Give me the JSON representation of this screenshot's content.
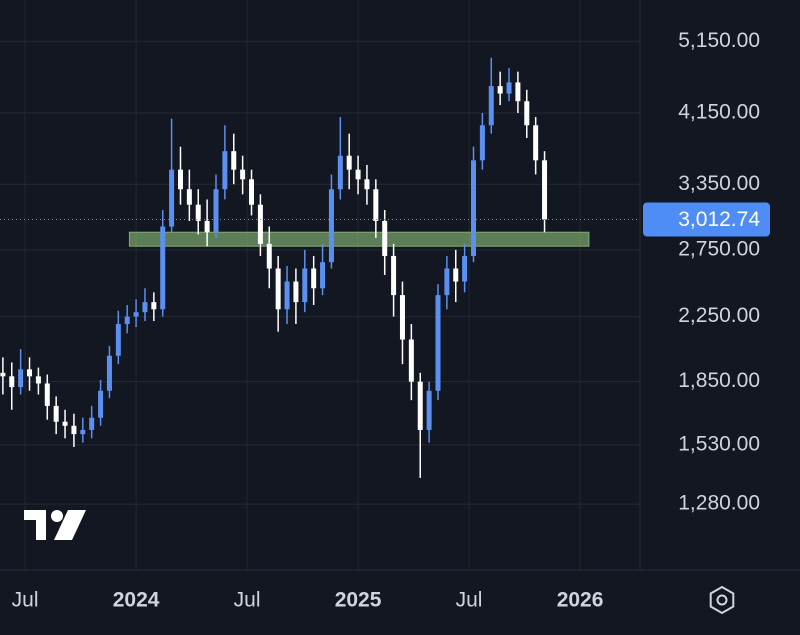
{
  "chart_data": {
    "type": "candlestick",
    "x": [
      2023.4,
      2023.44,
      2023.48,
      2023.52,
      2023.56,
      2023.6,
      2023.64,
      2023.68,
      2023.72,
      2023.76,
      2023.8,
      2023.84,
      2023.88,
      2023.92,
      2023.96,
      2024.0,
      2024.04,
      2024.08,
      2024.12,
      2024.16,
      2024.2,
      2024.24,
      2024.28,
      2024.32,
      2024.36,
      2024.4,
      2024.44,
      2024.48,
      2024.52,
      2024.56,
      2024.6,
      2024.64,
      2024.68,
      2024.72,
      2024.76,
      2024.8,
      2024.84,
      2024.88,
      2024.92,
      2024.96,
      2025.0,
      2025.04,
      2025.08,
      2025.12,
      2025.16,
      2025.2,
      2025.24,
      2025.28,
      2025.32,
      2025.36,
      2025.4,
      2025.44,
      2025.48,
      2025.52,
      2025.56,
      2025.6,
      2025.64,
      2025.68,
      2025.72,
      2025.76,
      2025.8,
      2025.84
    ],
    "open": [
      1900,
      1880,
      1820,
      1920,
      1880,
      1840,
      1720,
      1640,
      1620,
      1580,
      1600,
      1660,
      1800,
      2000,
      2200,
      2250,
      2280,
      2350,
      2300,
      2950,
      3500,
      3300,
      3150,
      3000,
      2900,
      3300,
      3700,
      3500,
      3400,
      3150,
      2800,
      2600,
      2300,
      2500,
      2350,
      2600,
      2450,
      2650,
      3300,
      3650,
      3500,
      3400,
      3300,
      3000,
      2700,
      2400,
      2100,
      1850,
      1600,
      1800,
      2400,
      2600,
      2500,
      2700,
      3600,
      4000,
      4500,
      4400,
      4550,
      4300,
      4000,
      3600
    ],
    "high": [
      1990,
      1960,
      2040,
      1990,
      1930,
      1890,
      1770,
      1700,
      1680,
      1660,
      1720,
      1860,
      2060,
      2290,
      2330,
      2370,
      2450,
      2420,
      3100,
      4080,
      3750,
      3500,
      3300,
      3200,
      3450,
      4000,
      3900,
      3650,
      3500,
      3250,
      2950,
      2700,
      2620,
      2600,
      2750,
      2700,
      2800,
      3450,
      4100,
      3900,
      3650,
      3550,
      3400,
      3100,
      2800,
      2500,
      2200,
      1900,
      1850,
      2480,
      2700,
      2750,
      2800,
      3750,
      4150,
      4900,
      4700,
      4750,
      4700,
      4450,
      4100,
      3700
    ],
    "low": [
      1780,
      1700,
      1780,
      1800,
      1780,
      1650,
      1580,
      1560,
      1520,
      1540,
      1560,
      1620,
      1760,
      1950,
      2140,
      2180,
      2220,
      2220,
      2250,
      2900,
      3150,
      3000,
      2880,
      2780,
      2850,
      3200,
      3350,
      3250,
      3050,
      2700,
      2450,
      2150,
      2200,
      2200,
      2280,
      2330,
      2400,
      2600,
      3200,
      3300,
      3250,
      3150,
      2850,
      2550,
      2250,
      1950,
      1750,
      1385,
      1540,
      1750,
      2300,
      2350,
      2420,
      2650,
      3500,
      3900,
      4250,
      4300,
      4150,
      3850,
      3450,
      2900
    ],
    "close": [
      1880,
      1820,
      1920,
      1880,
      1840,
      1720,
      1640,
      1620,
      1580,
      1600,
      1660,
      1800,
      2000,
      2200,
      2250,
      2280,
      2350,
      2300,
      2950,
      3500,
      3300,
      3150,
      3000,
      2900,
      3300,
      3700,
      3500,
      3400,
      3150,
      2800,
      2600,
      2300,
      2500,
      2350,
      2600,
      2450,
      2650,
      3300,
      3650,
      3500,
      3400,
      3300,
      3000,
      2700,
      2400,
      2100,
      1850,
      1600,
      1800,
      2400,
      2600,
      2500,
      2700,
      3600,
      4000,
      4500,
      4400,
      4550,
      4300,
      4000,
      3600,
      3012.74
    ],
    "up_color": "#5b8ff0",
    "down_color": "#ffffff",
    "xlim": [
      2023.387,
      2026.27
    ],
    "xticks": [
      {
        "value": 2023.5,
        "label": "Jul"
      },
      2024,
      {
        "value": 2024.5,
        "label": "Jul"
      },
      2025,
      {
        "value": 2025.5,
        "label": "Jul"
      },
      2026
    ],
    "ylim": [
      1050,
      5830
    ],
    "log_scale": true,
    "grid": true,
    "yticks": [
      {
        "value": 5150,
        "label": "5,150.00"
      },
      {
        "value": 4150,
        "label": "4,150.00"
      },
      {
        "value": 3350,
        "label": "3,350.00"
      },
      {
        "value": 2750,
        "label": "2,750.00"
      },
      {
        "value": 2250,
        "label": "2,250.00"
      },
      {
        "value": 1850,
        "label": "1,850.00"
      },
      {
        "value": 1530,
        "label": "1,530.00"
      },
      {
        "value": 1280,
        "label": "1,280.00"
      }
    ],
    "last_price": {
      "value": 3012.74,
      "label": "3,012.74"
    },
    "zone": {
      "x": [
        2023.97,
        2026.04
      ],
      "y": [
        2780,
        2900
      ],
      "color": "#8fc27f"
    }
  }
}
